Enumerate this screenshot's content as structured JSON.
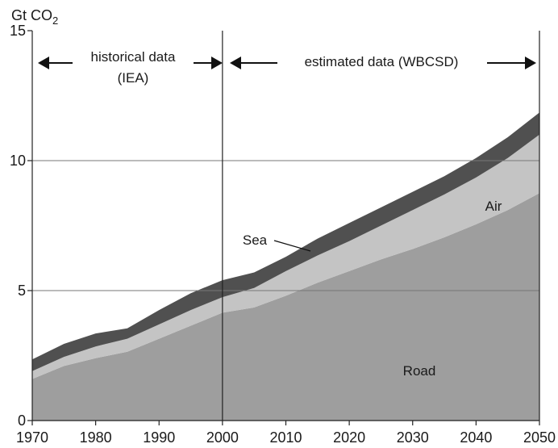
{
  "chart_data": {
    "type": "area",
    "stacked": true,
    "ylabel": "Gt CO",
    "ylabel_subscript": "2",
    "x": [
      1970,
      1975,
      1980,
      1985,
      1990,
      1995,
      2000,
      2005,
      2010,
      2015,
      2020,
      2025,
      2030,
      2035,
      2040,
      2045,
      2050
    ],
    "xlim": [
      1970,
      2050
    ],
    "ylim": [
      0,
      15
    ],
    "x_ticks": [
      "1970",
      "1980",
      "1990",
      "2000",
      "2010",
      "2020",
      "2030",
      "2040",
      "2050"
    ],
    "y_ticks": [
      "0",
      "5",
      "10",
      "15"
    ],
    "gridlines_y": [
      5,
      10
    ],
    "divider_x": 2000,
    "series": [
      {
        "name": "Road",
        "color": "#9e9e9e",
        "values": [
          1.6,
          2.1,
          2.4,
          2.65,
          3.15,
          3.65,
          4.15,
          4.35,
          4.8,
          5.3,
          5.75,
          6.2,
          6.6,
          7.05,
          7.55,
          8.1,
          8.75
        ]
      },
      {
        "name": "Air",
        "color": "#c4c4c4",
        "values": [
          0.3,
          0.35,
          0.45,
          0.5,
          0.55,
          0.6,
          0.6,
          0.75,
          0.95,
          1.05,
          1.15,
          1.3,
          1.5,
          1.65,
          1.8,
          2.0,
          2.25
        ]
      },
      {
        "name": "Sea",
        "color": "#505050",
        "values": [
          0.45,
          0.5,
          0.5,
          0.4,
          0.55,
          0.65,
          0.65,
          0.6,
          0.55,
          0.65,
          0.7,
          0.7,
          0.7,
          0.7,
          0.75,
          0.8,
          0.85
        ]
      }
    ],
    "annotations": {
      "historical_line1": "historical data",
      "historical_line2": "(IEA)",
      "estimated": "estimated data (WBCSD)",
      "road": "Road",
      "air": "Air",
      "sea": "Sea"
    }
  }
}
